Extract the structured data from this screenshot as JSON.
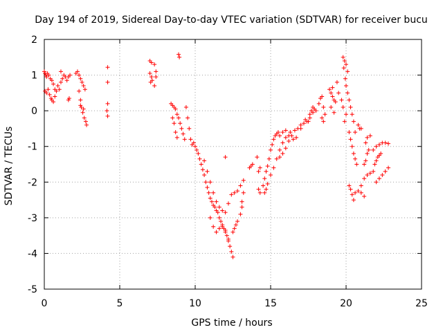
{
  "chart_data": {
    "type": "scatter",
    "title": "Day 194 of 2019, Sidereal Day-to-day VTEC variation (SDTVAR) for receiver bucu",
    "xlabel": "GPS time / hours",
    "ylabel": "SDTVAR / TECUs",
    "xlim": [
      0,
      25
    ],
    "ylim": [
      -5,
      2
    ],
    "xticks": [
      "0",
      "5",
      "10",
      "15",
      "20",
      "25"
    ],
    "yticks": [
      "2",
      "1",
      "0",
      "-1",
      "-2",
      "-3",
      "-4",
      "-5"
    ],
    "grid": true,
    "marker": "+",
    "colors": {
      "series": "#ff0000",
      "grid": "#a0a0a0",
      "axis": "#000000"
    },
    "series": [
      {
        "name": "SDTVAR",
        "points": [
          [
            0.0,
            1.1
          ],
          [
            0.05,
            1.05
          ],
          [
            0.1,
            1.0
          ],
          [
            0.15,
            0.95
          ],
          [
            0.2,
            1.05
          ],
          [
            0.3,
            1.0
          ],
          [
            0.4,
            0.9
          ],
          [
            0.5,
            0.85
          ],
          [
            0.6,
            0.75
          ],
          [
            0.7,
            0.6
          ],
          [
            0.05,
            0.55
          ],
          [
            0.15,
            0.5
          ],
          [
            0.25,
            0.6
          ],
          [
            0.35,
            0.45
          ],
          [
            0.45,
            0.35
          ],
          [
            0.5,
            0.3
          ],
          [
            0.6,
            0.25
          ],
          [
            0.7,
            0.4
          ],
          [
            0.8,
            0.55
          ],
          [
            0.9,
            0.7
          ],
          [
            1.0,
            0.6
          ],
          [
            1.1,
            0.8
          ],
          [
            1.2,
            0.9
          ],
          [
            1.3,
            1.0
          ],
          [
            1.4,
            0.95
          ],
          [
            1.5,
            0.85
          ],
          [
            1.6,
            0.95
          ],
          [
            1.7,
            1.0
          ],
          [
            1.1,
            1.1
          ],
          [
            1.6,
            0.3
          ],
          [
            1.65,
            0.35
          ],
          [
            2.1,
            1.05
          ],
          [
            2.2,
            1.1
          ],
          [
            2.3,
            1.0
          ],
          [
            2.4,
            0.9
          ],
          [
            2.5,
            0.8
          ],
          [
            2.6,
            0.7
          ],
          [
            2.7,
            0.6
          ],
          [
            2.3,
            0.55
          ],
          [
            2.4,
            0.3
          ],
          [
            2.45,
            0.1
          ],
          [
            2.55,
            -0.05
          ],
          [
            2.65,
            -0.2
          ],
          [
            2.75,
            -0.3
          ],
          [
            2.8,
            -0.4
          ],
          [
            2.4,
            0.15
          ],
          [
            2.6,
            0.05
          ],
          [
            4.2,
            1.22
          ],
          [
            4.2,
            0.8
          ],
          [
            4.2,
            0.2
          ],
          [
            4.15,
            0.0
          ],
          [
            4.2,
            -0.15
          ],
          [
            7.0,
            1.4
          ],
          [
            7.1,
            1.35
          ],
          [
            7.3,
            1.3
          ],
          [
            7.0,
            1.05
          ],
          [
            7.1,
            0.95
          ],
          [
            7.05,
            0.8
          ],
          [
            7.15,
            0.85
          ],
          [
            7.3,
            0.7
          ],
          [
            7.4,
            0.95
          ],
          [
            7.4,
            1.1
          ],
          [
            8.9,
            1.58
          ],
          [
            8.95,
            1.5
          ],
          [
            8.4,
            0.2
          ],
          [
            8.5,
            0.15
          ],
          [
            8.6,
            0.1
          ],
          [
            8.7,
            0.05
          ],
          [
            8.8,
            -0.1
          ],
          [
            8.9,
            -0.2
          ],
          [
            9.0,
            -0.35
          ],
          [
            9.1,
            -0.5
          ],
          [
            8.5,
            -0.2
          ],
          [
            8.6,
            -0.35
          ],
          [
            8.7,
            -0.6
          ],
          [
            8.8,
            -0.75
          ],
          [
            9.2,
            -0.65
          ],
          [
            9.3,
            -0.8
          ],
          [
            9.4,
            0.1
          ],
          [
            9.5,
            -0.2
          ],
          [
            9.6,
            -0.5
          ],
          [
            9.7,
            -0.8
          ],
          [
            9.8,
            -0.95
          ],
          [
            9.9,
            -0.9
          ],
          [
            10.0,
            -1.0
          ],
          [
            10.1,
            -1.1
          ],
          [
            10.2,
            -1.2
          ],
          [
            10.3,
            -1.35
          ],
          [
            10.4,
            -1.5
          ],
          [
            10.5,
            -1.65
          ],
          [
            10.6,
            -1.8
          ],
          [
            10.7,
            -2.0
          ],
          [
            10.8,
            -2.15
          ],
          [
            10.9,
            -2.3
          ],
          [
            11.0,
            -2.45
          ],
          [
            11.1,
            -2.55
          ],
          [
            11.2,
            -2.65
          ],
          [
            11.3,
            -2.7
          ],
          [
            11.4,
            -2.8
          ],
          [
            11.5,
            -2.85
          ],
          [
            11.6,
            -3.0
          ],
          [
            11.7,
            -3.1
          ],
          [
            11.8,
            -3.2
          ],
          [
            11.9,
            -3.3
          ],
          [
            12.0,
            -3.4
          ],
          [
            12.1,
            -3.5
          ],
          [
            12.2,
            -3.65
          ],
          [
            12.3,
            -3.8
          ],
          [
            12.4,
            -3.95
          ],
          [
            12.5,
            -4.1
          ],
          [
            10.6,
            -1.4
          ],
          [
            10.8,
            -1.7
          ],
          [
            11.0,
            -2.0
          ],
          [
            11.2,
            -2.3
          ],
          [
            11.4,
            -2.55
          ],
          [
            11.6,
            -2.7
          ],
          [
            11.8,
            -2.8
          ],
          [
            12.0,
            -2.85
          ],
          [
            12.2,
            -2.6
          ],
          [
            12.4,
            -2.35
          ],
          [
            12.6,
            -2.3
          ],
          [
            12.8,
            -2.25
          ],
          [
            13.0,
            -2.1
          ],
          [
            13.2,
            -1.95
          ],
          [
            11.0,
            -3.0
          ],
          [
            11.2,
            -3.25
          ],
          [
            11.4,
            -3.4
          ],
          [
            11.6,
            -3.3
          ],
          [
            11.8,
            -3.25
          ],
          [
            12.0,
            -3.35
          ],
          [
            12.2,
            -3.6
          ],
          [
            12.6,
            -3.3
          ],
          [
            12.8,
            -3.1
          ],
          [
            13.0,
            -2.9
          ],
          [
            13.1,
            -2.7
          ],
          [
            12.5,
            -3.4
          ],
          [
            12.7,
            -3.2
          ],
          [
            12.0,
            -1.3
          ],
          [
            13.1,
            -2.55
          ],
          [
            13.2,
            -2.3
          ],
          [
            13.6,
            -1.6
          ],
          [
            13.8,
            -1.5
          ],
          [
            13.7,
            -1.55
          ],
          [
            14.2,
            -1.7
          ],
          [
            14.3,
            -1.6
          ],
          [
            14.1,
            -1.3
          ],
          [
            14.2,
            -2.2
          ],
          [
            14.3,
            -2.3
          ],
          [
            14.5,
            -2.1
          ],
          [
            14.6,
            -1.9
          ],
          [
            14.7,
            -1.7
          ],
          [
            14.8,
            -1.55
          ],
          [
            14.9,
            -1.35
          ],
          [
            15.0,
            -1.1
          ],
          [
            15.1,
            -0.95
          ],
          [
            15.2,
            -0.8
          ],
          [
            15.3,
            -0.7
          ],
          [
            15.4,
            -0.65
          ],
          [
            15.5,
            -0.6
          ],
          [
            15.6,
            -0.7
          ],
          [
            14.6,
            -2.3
          ],
          [
            14.7,
            -2.2
          ],
          [
            14.8,
            -2.05
          ],
          [
            15.0,
            -1.8
          ],
          [
            15.2,
            -1.6
          ],
          [
            15.4,
            -1.35
          ],
          [
            15.6,
            -1.1
          ],
          [
            15.8,
            -0.9
          ],
          [
            16.0,
            -0.75
          ],
          [
            16.2,
            -0.7
          ],
          [
            15.6,
            -1.3
          ],
          [
            15.8,
            -1.2
          ],
          [
            16.0,
            -1.05
          ],
          [
            16.2,
            -0.85
          ],
          [
            16.4,
            -0.7
          ],
          [
            16.6,
            -0.55
          ],
          [
            16.8,
            -0.5
          ],
          [
            17.0,
            -0.4
          ],
          [
            17.2,
            -0.35
          ],
          [
            17.4,
            -0.3
          ],
          [
            15.8,
            -0.6
          ],
          [
            16.0,
            -0.55
          ],
          [
            16.3,
            -0.6
          ],
          [
            16.5,
            -0.8
          ],
          [
            16.7,
            -0.75
          ],
          [
            17.0,
            -0.5
          ],
          [
            17.3,
            -0.25
          ],
          [
            17.5,
            -0.3
          ],
          [
            17.6,
            -0.1
          ],
          [
            17.7,
            0.0
          ],
          [
            17.8,
            0.1
          ],
          [
            17.9,
            0.05
          ],
          [
            17.6,
            -0.2
          ],
          [
            17.8,
            -0.05
          ],
          [
            18.0,
            0.0
          ],
          [
            18.2,
            0.2
          ],
          [
            18.3,
            0.35
          ],
          [
            18.4,
            0.4
          ],
          [
            18.5,
            0.1
          ],
          [
            18.6,
            -0.1
          ],
          [
            18.4,
            -0.2
          ],
          [
            18.5,
            -0.3
          ],
          [
            18.9,
            0.6
          ],
          [
            19.0,
            0.5
          ],
          [
            19.1,
            0.4
          ],
          [
            19.2,
            0.3
          ],
          [
            19.3,
            0.25
          ],
          [
            19.0,
            0.1
          ],
          [
            19.2,
            -0.05
          ],
          [
            19.1,
            0.65
          ],
          [
            19.4,
            0.8
          ],
          [
            19.5,
            0.5
          ],
          [
            19.7,
            0.3
          ],
          [
            19.8,
            0.1
          ],
          [
            19.8,
            1.5
          ],
          [
            19.9,
            1.4
          ],
          [
            20.0,
            1.3
          ],
          [
            20.1,
            1.1
          ],
          [
            19.85,
            1.2
          ],
          [
            19.95,
            0.9
          ],
          [
            20.0,
            0.7
          ],
          [
            20.1,
            0.5
          ],
          [
            20.2,
            0.3
          ],
          [
            20.3,
            0.1
          ],
          [
            20.4,
            -0.1
          ],
          [
            20.5,
            -0.3
          ],
          [
            19.9,
            -0.3
          ],
          [
            20.0,
            -0.1
          ],
          [
            20.2,
            -0.6
          ],
          [
            20.3,
            -0.8
          ],
          [
            20.4,
            -1.0
          ],
          [
            20.5,
            -1.2
          ],
          [
            20.6,
            -1.35
          ],
          [
            20.7,
            -1.5
          ],
          [
            20.8,
            -0.4
          ],
          [
            20.9,
            -0.5
          ],
          [
            20.6,
            -0.6
          ],
          [
            21.0,
            -0.5
          ],
          [
            20.2,
            -2.1
          ],
          [
            20.3,
            -2.2
          ],
          [
            20.4,
            -2.35
          ],
          [
            20.5,
            -2.5
          ],
          [
            20.6,
            -2.3
          ],
          [
            20.8,
            -2.25
          ],
          [
            21.0,
            -2.1
          ],
          [
            21.2,
            -1.9
          ],
          [
            21.4,
            -1.8
          ],
          [
            21.6,
            -1.75
          ],
          [
            21.8,
            -1.7
          ],
          [
            21.2,
            -1.5
          ],
          [
            21.3,
            -1.4
          ],
          [
            21.4,
            -1.2
          ],
          [
            21.5,
            -1.1
          ],
          [
            21.3,
            -0.9
          ],
          [
            21.4,
            -0.75
          ],
          [
            21.6,
            -0.7
          ],
          [
            21.8,
            -1.1
          ],
          [
            22.0,
            -1.0
          ],
          [
            22.2,
            -0.95
          ],
          [
            22.4,
            -0.9
          ],
          [
            22.6,
            -0.9
          ],
          [
            22.8,
            -0.92
          ],
          [
            21.9,
            -1.5
          ],
          [
            22.0,
            -1.4
          ],
          [
            22.1,
            -1.3
          ],
          [
            22.2,
            -1.25
          ],
          [
            22.3,
            -1.2
          ],
          [
            22.0,
            -2.0
          ],
          [
            22.2,
            -1.9
          ],
          [
            22.4,
            -1.8
          ],
          [
            22.6,
            -1.7
          ],
          [
            22.8,
            -1.6
          ],
          [
            21.0,
            -2.3
          ],
          [
            21.2,
            -2.4
          ]
        ]
      }
    ]
  }
}
